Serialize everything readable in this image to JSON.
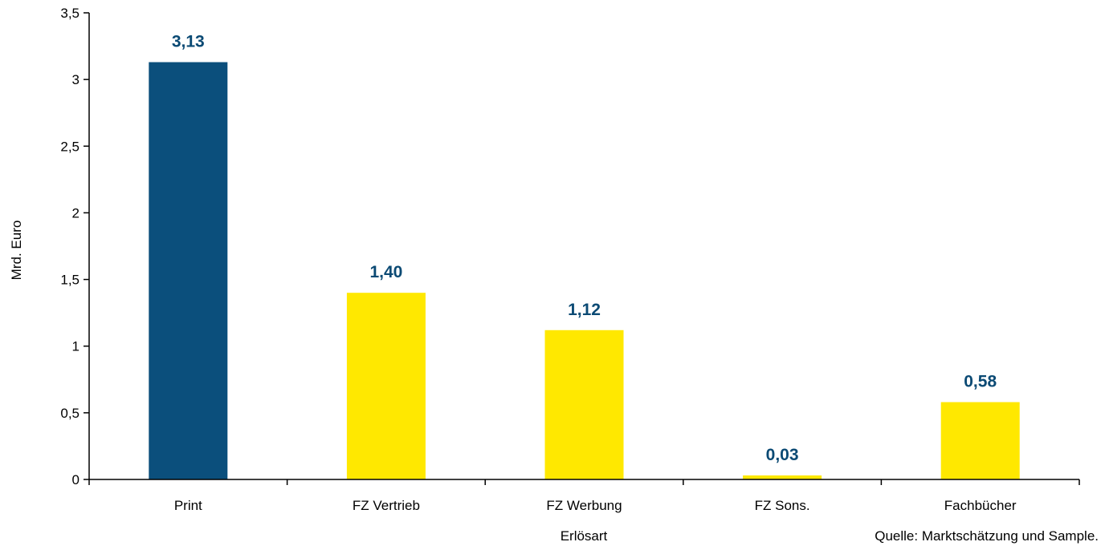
{
  "chart_data": {
    "type": "bar",
    "categories": [
      "Print",
      "FZ Vertrieb",
      "FZ Werbung",
      "FZ Sons.",
      "Fachbücher"
    ],
    "values": [
      3.13,
      1.4,
      1.12,
      0.03,
      0.58
    ],
    "value_labels": [
      "3,13",
      "1,40",
      "1,12",
      "0,03",
      "0,58"
    ],
    "bar_colors": [
      "#0b4f7c",
      "#ffe800",
      "#ffe800",
      "#ffe800",
      "#ffe800"
    ],
    "label_color": "#0b4a74",
    "xlabel": "Erlösart",
    "ylabel": "Mrd. Euro",
    "ylim": [
      0,
      3.5
    ],
    "yticks": [
      0,
      0.5,
      1,
      1.5,
      2,
      2.5,
      3,
      3.5
    ],
    "ytick_labels": [
      "0",
      "0,5",
      "1",
      "1,5",
      "2",
      "2,5",
      "3",
      "3,5"
    ],
    "grid": false,
    "legend": "none"
  },
  "source_note": "Quelle: Marktschätzung und Sample."
}
